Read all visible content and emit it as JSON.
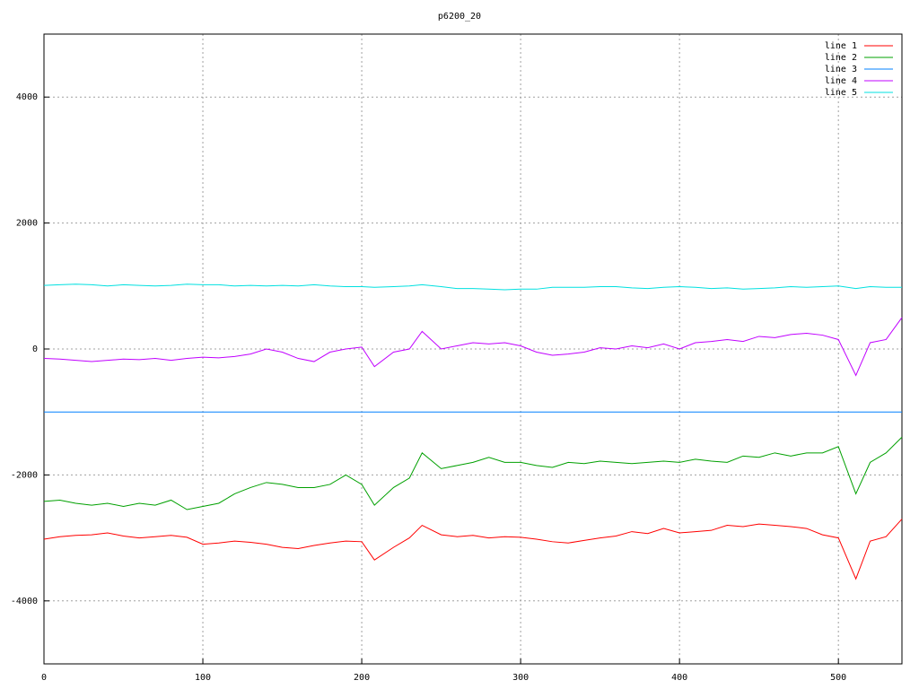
{
  "chart_data": {
    "type": "line",
    "title": "p6200_20",
    "x": [
      0,
      10,
      20,
      30,
      40,
      50,
      60,
      70,
      80,
      90,
      100,
      110,
      120,
      130,
      140,
      150,
      160,
      170,
      180,
      190,
      200,
      208,
      220,
      230,
      238,
      250,
      260,
      270,
      280,
      290,
      300,
      310,
      320,
      330,
      340,
      350,
      360,
      370,
      380,
      390,
      400,
      410,
      420,
      430,
      440,
      450,
      460,
      470,
      480,
      490,
      500,
      511,
      520,
      530,
      540
    ],
    "series": [
      {
        "name": "line 1",
        "color": "#ff0000",
        "values": [
          -3020,
          -2980,
          -2960,
          -2950,
          -2920,
          -2970,
          -3000,
          -2980,
          -2960,
          -2990,
          -3100,
          -3080,
          -3050,
          -3070,
          -3100,
          -3150,
          -3170,
          -3120,
          -3080,
          -3050,
          -3060,
          -3350,
          -3150,
          -3000,
          -2800,
          -2950,
          -2980,
          -2960,
          -3000,
          -2980,
          -2990,
          -3020,
          -3060,
          -3080,
          -3040,
          -3000,
          -2970,
          -2900,
          -2930,
          -2850,
          -2920,
          -2900,
          -2880,
          -2800,
          -2820,
          -2780,
          -2800,
          -2820,
          -2850,
          -2950,
          -3000,
          -3650,
          -3050,
          -2980,
          -2700
        ]
      },
      {
        "name": "line 2",
        "color": "#00a000",
        "values": [
          -2420,
          -2400,
          -2450,
          -2480,
          -2450,
          -2500,
          -2450,
          -2480,
          -2400,
          -2550,
          -2500,
          -2450,
          -2300,
          -2200,
          -2120,
          -2150,
          -2200,
          -2200,
          -2150,
          -2000,
          -2150,
          -2480,
          -2200,
          -2050,
          -1650,
          -1900,
          -1850,
          -1800,
          -1720,
          -1800,
          -1800,
          -1850,
          -1880,
          -1800,
          -1820,
          -1780,
          -1800,
          -1820,
          -1800,
          -1780,
          -1800,
          -1750,
          -1780,
          -1800,
          -1700,
          -1720,
          -1650,
          -1700,
          -1650,
          -1650,
          -1550,
          -2300,
          -1800,
          -1650,
          -1400
        ]
      },
      {
        "name": "line 3",
        "color": "#0080ff",
        "values": [
          -1000,
          -1000,
          -1000,
          -1000,
          -1000,
          -1000,
          -1000,
          -1000,
          -1000,
          -1000,
          -1000,
          -1000,
          -1000,
          -1000,
          -1000,
          -1000,
          -1000,
          -1000,
          -1000,
          -1000,
          -1000,
          -1000,
          -1000,
          -1000,
          -1000,
          -1000,
          -1000,
          -1000,
          -1000,
          -1000,
          -1000,
          -1000,
          -1000,
          -1000,
          -1000,
          -1000,
          -1000,
          -1000,
          -1000,
          -1000,
          -1000,
          -1000,
          -1000,
          -1000,
          -1000,
          -1000,
          -1000,
          -1000,
          -1000,
          -1000,
          -1000,
          -1000,
          -1000,
          -1000,
          -1000
        ]
      },
      {
        "name": "line 4",
        "color": "#c000ff",
        "values": [
          -150,
          -160,
          -180,
          -200,
          -180,
          -160,
          -170,
          -150,
          -180,
          -150,
          -130,
          -140,
          -120,
          -80,
          0,
          -50,
          -150,
          -200,
          -50,
          0,
          30,
          -280,
          -50,
          0,
          280,
          0,
          50,
          100,
          80,
          100,
          50,
          -50,
          -100,
          -80,
          -50,
          20,
          0,
          50,
          20,
          80,
          0,
          100,
          120,
          150,
          120,
          200,
          180,
          230,
          250,
          220,
          150,
          -420,
          100,
          150,
          500
        ]
      },
      {
        "name": "line 5",
        "color": "#00e0e0",
        "values": [
          1010,
          1020,
          1030,
          1020,
          1000,
          1020,
          1010,
          1000,
          1010,
          1030,
          1020,
          1020,
          1000,
          1010,
          1000,
          1010,
          1000,
          1020,
          1000,
          990,
          990,
          980,
          990,
          1000,
          1020,
          990,
          960,
          960,
          950,
          940,
          950,
          950,
          980,
          980,
          980,
          990,
          990,
          970,
          960,
          980,
          990,
          980,
          960,
          970,
          950,
          960,
          970,
          990,
          980,
          990,
          1000,
          960,
          990,
          980,
          980
        ]
      }
    ],
    "xlim": [
      0,
      540
    ],
    "xticks": [
      0,
      100,
      200,
      300,
      400,
      500
    ],
    "ylim": [
      -5000,
      5000
    ],
    "yticks": [
      -4000,
      -2000,
      0,
      2000,
      4000
    ],
    "grid": true,
    "legend": "top-right"
  }
}
